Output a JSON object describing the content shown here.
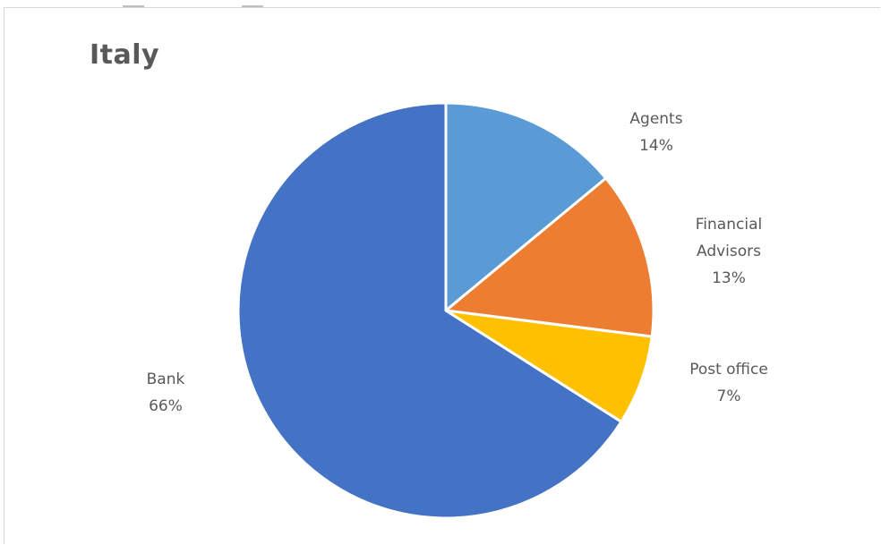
{
  "chart_data": {
    "type": "pie",
    "title": "Italy",
    "categories": [
      "Agents",
      "Financial Advisors",
      "Post office",
      "Bank"
    ],
    "values": [
      14,
      13,
      7,
      66
    ],
    "labels": [
      [
        "Agents",
        "14%"
      ],
      [
        "Financial",
        "Advisors",
        "13%"
      ],
      [
        "Post office",
        "7%"
      ],
      [
        "Bank",
        "66%"
      ]
    ],
    "colors": [
      "#5b9bd5",
      "#ed7d31",
      "#ffc000",
      "#4472c4"
    ],
    "legend": "none",
    "data_labels": "outside"
  }
}
